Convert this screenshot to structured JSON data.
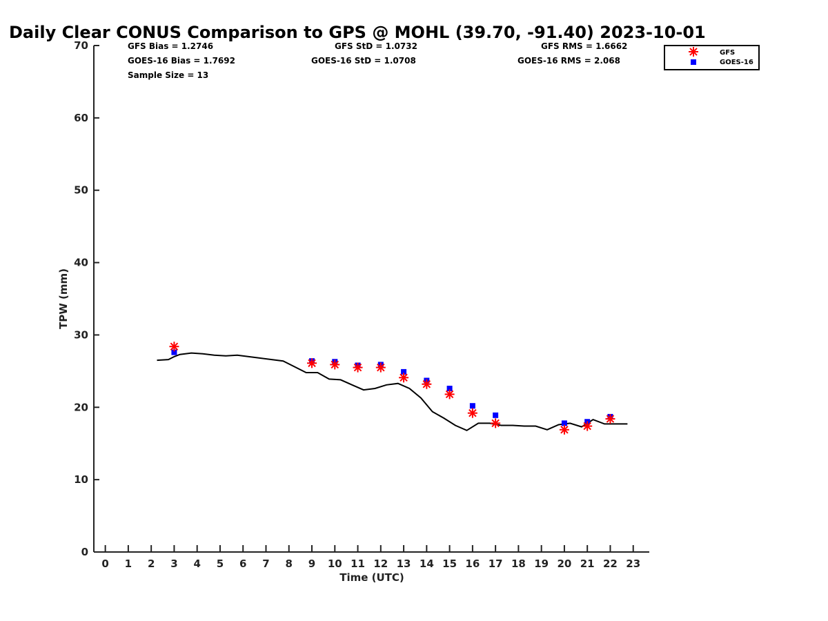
{
  "chart_data": {
    "type": "line",
    "title": "Daily Clear CONUS Comparison to GPS @ MOHL (39.70, -91.40) 2023-10-01",
    "xlabel": "Time (UTC)",
    "ylabel": "TPW (mm)",
    "xlim": [
      -0.5,
      23.7
    ],
    "ylim": [
      0,
      70
    ],
    "x_ticks": [
      0,
      1,
      2,
      3,
      4,
      5,
      6,
      7,
      8,
      9,
      10,
      11,
      12,
      13,
      14,
      15,
      16,
      17,
      18,
      19,
      20,
      21,
      22,
      23
    ],
    "y_ticks": [
      0,
      10,
      20,
      30,
      40,
      50,
      60,
      70
    ],
    "grid": false,
    "legend_position": "top-right",
    "stats": {
      "gfs_bias": "GFS Bias = 1.2746",
      "gfs_std": "GFS StD = 1.0732",
      "gfs_rms": "GFS RMS = 1.6662",
      "goes_bias": "GOES-16 Bias = 1.7692",
      "goes_std": "GOES-16 StD = 1.0708",
      "goes_rms": "GOES-16 RMS = 2.068",
      "sample_size": "Sample Size = 13"
    },
    "series": [
      {
        "kind": "line",
        "color": "#000000",
        "x": [
          2.25,
          2.75,
          3.0,
          3.25,
          3.75,
          4.25,
          4.75,
          5.25,
          5.75,
          6.25,
          6.75,
          7.25,
          7.75,
          8.25,
          8.75,
          9.25,
          9.75,
          10.25,
          10.75,
          11.25,
          11.75,
          12.25,
          12.75,
          13.25,
          13.75,
          14.25,
          14.75,
          15.25,
          15.75,
          16.25,
          16.75,
          17.25,
          17.75,
          18.25,
          18.75,
          19.25,
          19.75,
          20.25,
          20.75,
          21.25,
          21.75,
          22.25,
          22.75
        ],
        "y": [
          26.5,
          26.6,
          27.0,
          27.3,
          27.5,
          27.4,
          27.2,
          27.1,
          27.2,
          27.0,
          26.8,
          26.6,
          26.4,
          25.6,
          24.8,
          24.8,
          23.9,
          23.8,
          23.1,
          22.4,
          22.6,
          23.1,
          23.3,
          22.6,
          21.3,
          19.4,
          18.5,
          17.5,
          16.8,
          17.8,
          17.8,
          17.5,
          17.5,
          17.4,
          17.4,
          16.9,
          17.6,
          17.8,
          17.3,
          18.3,
          17.7,
          17.7,
          17.7
        ]
      },
      {
        "name": "GFS",
        "kind": "marker",
        "marker": "asterisk",
        "color": "#ff0000",
        "x": [
          3,
          9,
          10,
          11,
          12,
          13,
          14,
          15,
          16,
          17,
          20,
          21,
          22
        ],
        "y": [
          28.4,
          26.1,
          25.9,
          25.5,
          25.5,
          24.1,
          23.2,
          21.8,
          19.2,
          17.8,
          16.9,
          17.4,
          18.4
        ]
      },
      {
        "name": "GOES-16",
        "kind": "marker",
        "marker": "square",
        "color": "#0000ff",
        "x": [
          3,
          9,
          10,
          11,
          12,
          13,
          14,
          15,
          16,
          17,
          20,
          21,
          22
        ],
        "y": [
          27.6,
          26.4,
          26.3,
          25.8,
          25.9,
          24.9,
          23.7,
          22.6,
          20.2,
          18.9,
          17.8,
          18.0,
          18.7
        ]
      }
    ]
  }
}
